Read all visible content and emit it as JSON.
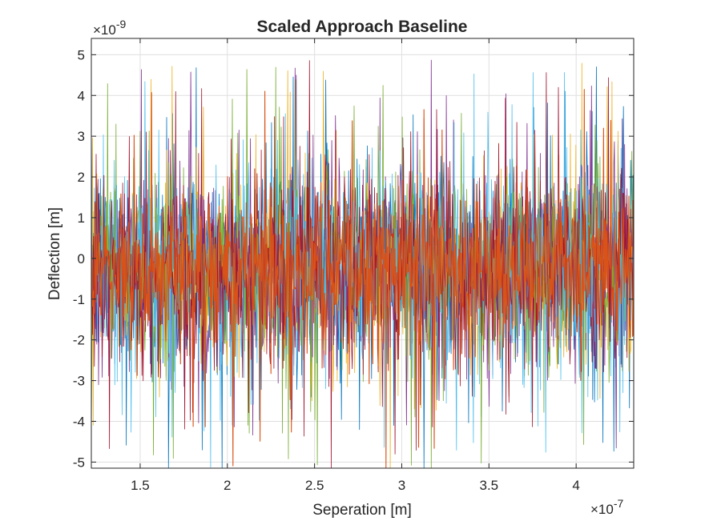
{
  "chart_data": {
    "type": "line",
    "title": "Scaled Approach Baseline",
    "xlabel": "Seperation [m]",
    "ylabel": "Deflection [m]",
    "x_exponent_base": "×10",
    "x_exponent_power": "-7",
    "y_exponent_base": "×10",
    "y_exponent_power": "-9",
    "xlim": [
      1.22e-07,
      4.33e-07
    ],
    "ylim": [
      -5.15e-09,
      5.4e-09
    ],
    "x_ticks": [
      1.5,
      2,
      2.5,
      3,
      3.5,
      4
    ],
    "x_tick_labels": [
      "1.5",
      "2",
      "2.5",
      "3",
      "3.5",
      "4"
    ],
    "y_ticks": [
      -5,
      -4,
      -3,
      -2,
      -1,
      0,
      1,
      2,
      3,
      4,
      5
    ],
    "y_tick_labels": [
      "-5",
      "-4",
      "-3",
      "-2",
      "-1",
      "0",
      "1",
      "2",
      "3",
      "4",
      "5"
    ],
    "grid": true,
    "series_colors": [
      "#0072BD",
      "#EDB120",
      "#7E2F8E",
      "#77AC30",
      "#4DBEEE",
      "#A2142F",
      "#D95319"
    ],
    "noise": {
      "x_start": 1.22e-07,
      "x_end": 4.33e-07,
      "mean": -2.5e-10,
      "typical_amplitude": 1.6e-09,
      "max_peak": 5.4e-09,
      "min_trough": -5.15e-09
    }
  }
}
